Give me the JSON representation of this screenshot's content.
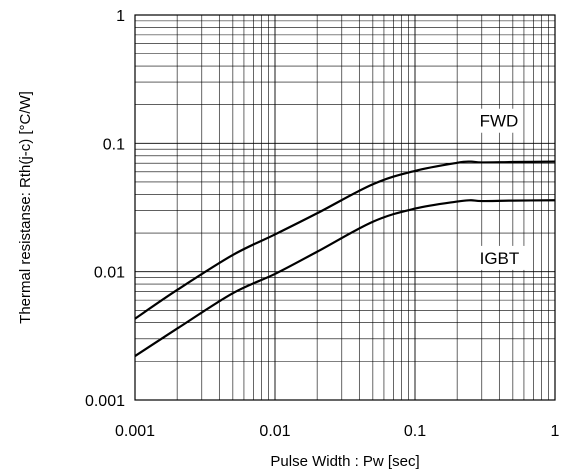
{
  "chart_data": {
    "type": "line",
    "title": "",
    "xlabel": "Pulse Width : Pw [sec]",
    "ylabel": "Thermal resistanse: Rth(j-c) [°C/W]",
    "xscale": "log",
    "yscale": "log",
    "xlim": [
      0.001,
      1
    ],
    "ylim": [
      0.001,
      1
    ],
    "grid": true,
    "x_ticks": [
      {
        "value": 0.001,
        "label": "0.001"
      },
      {
        "value": 0.01,
        "label": "0.01"
      },
      {
        "value": 0.1,
        "label": "0.1"
      },
      {
        "value": 1,
        "label": "1"
      }
    ],
    "y_ticks": [
      {
        "value": 0.001,
        "label": "0.001"
      },
      {
        "value": 0.01,
        "label": "0.01"
      },
      {
        "value": 0.1,
        "label": "0.1"
      },
      {
        "value": 1,
        "label": "1"
      }
    ],
    "series": [
      {
        "name": "FWD",
        "x": [
          0.001,
          0.002,
          0.005,
          0.01,
          0.02,
          0.05,
          0.1,
          0.2,
          0.25,
          0.3,
          0.5,
          1
        ],
        "y": [
          0.0043,
          0.0072,
          0.0135,
          0.0195,
          0.0285,
          0.048,
          0.061,
          0.0705,
          0.072,
          0.071,
          0.0715,
          0.072
        ]
      },
      {
        "name": "IGBT",
        "x": [
          0.001,
          0.002,
          0.005,
          0.01,
          0.02,
          0.05,
          0.1,
          0.2,
          0.25,
          0.3,
          0.5,
          1
        ],
        "y": [
          0.0022,
          0.0036,
          0.0068,
          0.0096,
          0.0143,
          0.0245,
          0.031,
          0.0352,
          0.036,
          0.0355,
          0.0358,
          0.036
        ]
      }
    ],
    "annotations": [
      {
        "text": "FWD",
        "x": 0.28,
        "y": 0.15
      },
      {
        "text": "IGBT",
        "x": 0.28,
        "y": 0.0128
      }
    ]
  }
}
